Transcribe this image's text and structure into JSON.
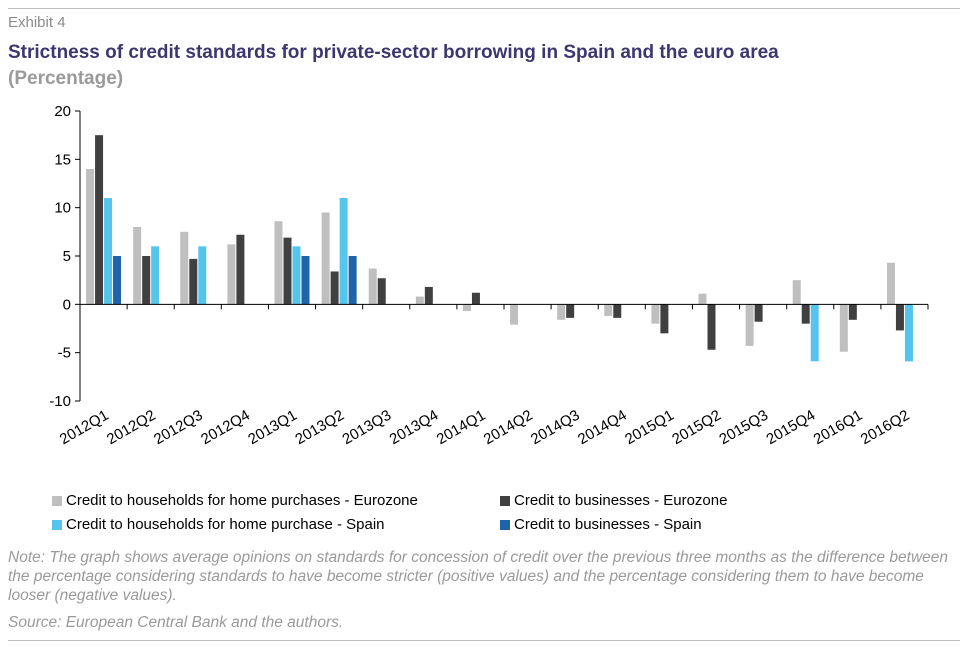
{
  "exhibit": "Exhibit 4",
  "title": "Strictness of credit standards for private-sector borrowing in Spain and the euro area",
  "subtitle": "(Percentage)",
  "note": "Note: The graph shows average opinions on standards for concession of credit over the previous three months as the difference between the percentage considering standards to have become stricter (positive values) and the percentage considering them to have become looser (negative values).",
  "source": "Source: European Central Bank and the authors.",
  "chart_data": {
    "type": "bar",
    "ylim": [
      -10,
      20
    ],
    "yticks": [
      20,
      15,
      10,
      5,
      0,
      -5,
      -10
    ],
    "legend_position": "bottom",
    "grid": false,
    "categories": [
      "2012Q1",
      "2012Q2",
      "2012Q3",
      "2012Q4",
      "2013Q1",
      "2013Q2",
      "2013Q3",
      "2013Q4",
      "2014Q1",
      "2014Q2",
      "2014Q3",
      "2014Q4",
      "2015Q1",
      "2015Q2",
      "2015Q3",
      "2015Q4",
      "2016Q1",
      "2016Q2"
    ],
    "series": [
      {
        "name": "Credit to households for home purchases - Eurozone",
        "color": "#bfbfbf",
        "values": [
          14.0,
          8.0,
          7.5,
          6.2,
          8.6,
          9.5,
          3.7,
          0.8,
          -0.7,
          -2.1,
          -1.6,
          -1.2,
          -2.0,
          1.1,
          -4.3,
          2.5,
          -4.9,
          4.3
        ]
      },
      {
        "name": "Credit to businesses - Eurozone",
        "color": "#404040",
        "values": [
          17.5,
          5.0,
          4.7,
          7.2,
          6.9,
          3.4,
          2.7,
          1.8,
          1.2,
          0,
          -1.4,
          -1.4,
          -3.0,
          -4.7,
          -1.8,
          -2.0,
          -1.6,
          -2.7
        ]
      },
      {
        "name": "Credit to households for home purchase - Spain",
        "color": "#55c5ee",
        "values": [
          11.0,
          6.0,
          6.0,
          null,
          6.0,
          11.0,
          null,
          null,
          null,
          null,
          null,
          null,
          null,
          null,
          null,
          -5.9,
          null,
          -5.9
        ]
      },
      {
        "name": "Credit to businesses - Spain",
        "color": "#1f63a8",
        "values": [
          5.0,
          null,
          null,
          null,
          5.0,
          5.0,
          null,
          null,
          null,
          null,
          null,
          null,
          null,
          null,
          null,
          null,
          null,
          null
        ]
      }
    ]
  }
}
